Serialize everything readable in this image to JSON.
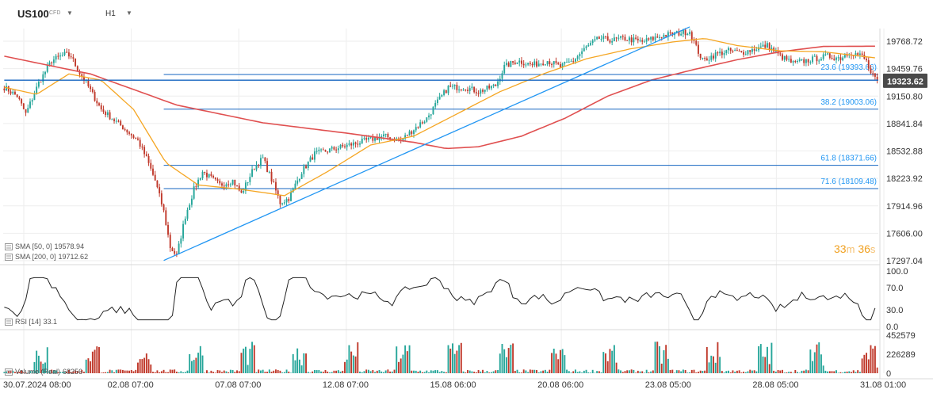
{
  "instrument": {
    "symbol": "US100",
    "type_label": "CFD",
    "timeframe": "H1"
  },
  "timer": {
    "minutes": "33",
    "m_unit": "m",
    "seconds": "36",
    "s_unit": "s"
  },
  "indicators": {
    "sma50": {
      "label": "SMA [50, 0]",
      "value": "19578.94",
      "color": "#f5a623"
    },
    "sma200": {
      "label": "SMA [200, 0]",
      "value": "19712.62",
      "color": "#e05050"
    },
    "rsi": {
      "label": "RSI [14]",
      "value": "33.1"
    },
    "volume": {
      "label": "Volume (Real)",
      "value": "68256"
    }
  },
  "colors": {
    "up": "#26a69a",
    "down": "#c0392b",
    "fib": "#1565c0",
    "trend": "#2196f3",
    "grid": "#eeeeee",
    "price_tag_bg": "#4a4a4a"
  },
  "chart_data": [
    {
      "type": "candlestick",
      "title": "US100 H1",
      "x_tick_labels": [
        "30.07.2024  08:00",
        "02.08  07:00",
        "07.08  07:00",
        "12.08  07:00",
        "15.08  06:00",
        "20.08  06:00",
        "23.08  05:00",
        "28.08  05:00",
        "31.08  01:00"
      ],
      "y_tick_labels": [
        "19768.72",
        "19459.76",
        "19150.80",
        "18841.84",
        "18532.88",
        "18223.92",
        "17914.96",
        "17606.00",
        "17297.04"
      ],
      "ylim": [
        17297.04,
        19768.72
      ],
      "last_price": "19323.62",
      "close_anchors": [
        [
          0,
          19250
        ],
        [
          6,
          19150
        ],
        [
          10,
          18950
        ],
        [
          16,
          19300
        ],
        [
          22,
          19550
        ],
        [
          28,
          19620
        ],
        [
          31,
          19600
        ],
        [
          34,
          19450
        ],
        [
          38,
          19300
        ],
        [
          45,
          19000
        ],
        [
          55,
          18800
        ],
        [
          62,
          18650
        ],
        [
          66,
          18450
        ],
        [
          70,
          18200
        ],
        [
          74,
          17850
        ],
        [
          77,
          17450
        ],
        [
          80,
          17350
        ],
        [
          84,
          17800
        ],
        [
          88,
          18100
        ],
        [
          92,
          18300
        ],
        [
          100,
          18150
        ],
        [
          106,
          18200
        ],
        [
          110,
          18050
        ],
        [
          116,
          18350
        ],
        [
          120,
          18450
        ],
        [
          125,
          18150
        ],
        [
          128,
          17950
        ],
        [
          132,
          18000
        ],
        [
          138,
          18300
        ],
        [
          144,
          18500
        ],
        [
          152,
          18550
        ],
        [
          160,
          18600
        ],
        [
          168,
          18650
        ],
        [
          176,
          18700
        ],
        [
          184,
          18650
        ],
        [
          190,
          18780
        ],
        [
          196,
          18900
        ],
        [
          200,
          19050
        ],
        [
          206,
          19250
        ],
        [
          214,
          19250
        ],
        [
          220,
          19200
        ],
        [
          228,
          19270
        ],
        [
          232,
          19480
        ],
        [
          238,
          19550
        ],
        [
          245,
          19500
        ],
        [
          252,
          19550
        ],
        [
          258,
          19480
        ],
        [
          264,
          19550
        ],
        [
          270,
          19700
        ],
        [
          276,
          19800
        ],
        [
          282,
          19780
        ],
        [
          288,
          19800
        ],
        [
          296,
          19760
        ],
        [
          305,
          19830
        ],
        [
          318,
          19880
        ],
        [
          321,
          19700
        ],
        [
          324,
          19550
        ],
        [
          330,
          19620
        ],
        [
          336,
          19660
        ],
        [
          342,
          19640
        ],
        [
          348,
          19680
        ],
        [
          354,
          19720
        ],
        [
          360,
          19600
        ],
        [
          366,
          19520
        ],
        [
          374,
          19560
        ],
        [
          382,
          19600
        ],
        [
          388,
          19580
        ],
        [
          392,
          19650
        ],
        [
          398,
          19600
        ],
        [
          400,
          19540
        ],
        [
          402,
          19400
        ],
        [
          405,
          19323.62
        ]
      ],
      "sma50_anchors": [
        [
          0,
          19250
        ],
        [
          15,
          19170
        ],
        [
          30,
          19400
        ],
        [
          45,
          19330
        ],
        [
          60,
          19000
        ],
        [
          75,
          18400
        ],
        [
          90,
          18150
        ],
        [
          110,
          18100
        ],
        [
          130,
          18030
        ],
        [
          150,
          18300
        ],
        [
          170,
          18600
        ],
        [
          190,
          18700
        ],
        [
          210,
          18950
        ],
        [
          230,
          19200
        ],
        [
          250,
          19400
        ],
        [
          270,
          19570
        ],
        [
          290,
          19680
        ],
        [
          310,
          19760
        ],
        [
          325,
          19800
        ],
        [
          340,
          19720
        ],
        [
          360,
          19660
        ],
        [
          380,
          19650
        ],
        [
          405,
          19578.94
        ]
      ],
      "sma200_anchors": [
        [
          0,
          19600
        ],
        [
          40,
          19400
        ],
        [
          80,
          19050
        ],
        [
          120,
          18850
        ],
        [
          160,
          18730
        ],
        [
          190,
          18630
        ],
        [
          205,
          18560
        ],
        [
          220,
          18580
        ],
        [
          240,
          18700
        ],
        [
          260,
          18900
        ],
        [
          280,
          19150
        ],
        [
          300,
          19330
        ],
        [
          320,
          19450
        ],
        [
          340,
          19560
        ],
        [
          360,
          19650
        ],
        [
          380,
          19710
        ],
        [
          405,
          19712.62
        ]
      ],
      "trendlines": [
        {
          "start": [
            74,
            17300
          ],
          "end": [
            318,
            19930
          ],
          "color": "#2196f3"
        },
        {
          "start": [
            0,
            19330
          ],
          "end": [
            405,
            19330
          ],
          "color": "#1565c0"
        }
      ],
      "fibonacci_levels": [
        {
          "ratio": "23.6",
          "price": 19393.66,
          "label": "23.6 (19393.66)"
        },
        {
          "ratio": "38.2",
          "price": 19003.06,
          "label": "38.2 (19003.06)"
        },
        {
          "ratio": "61.8",
          "price": 18371.66,
          "label": "61.8 (18371.66)"
        },
        {
          "ratio": "71.6",
          "price": 18109.48,
          "label": "71.6 (18109.48)"
        }
      ],
      "fib_x_start_bar": 74
    },
    {
      "type": "line",
      "title": "RSI [14]",
      "y_tick_labels": [
        "100.0",
        "70.0",
        "30.0",
        "0.0"
      ],
      "ylim": [
        0,
        100
      ],
      "last_value": 33.1
    },
    {
      "type": "bar",
      "title": "Volume (Real)",
      "y_tick_labels": [
        "452579",
        "226289",
        "0"
      ],
      "ylim": [
        0,
        452579
      ],
      "last_value": 68256
    }
  ]
}
